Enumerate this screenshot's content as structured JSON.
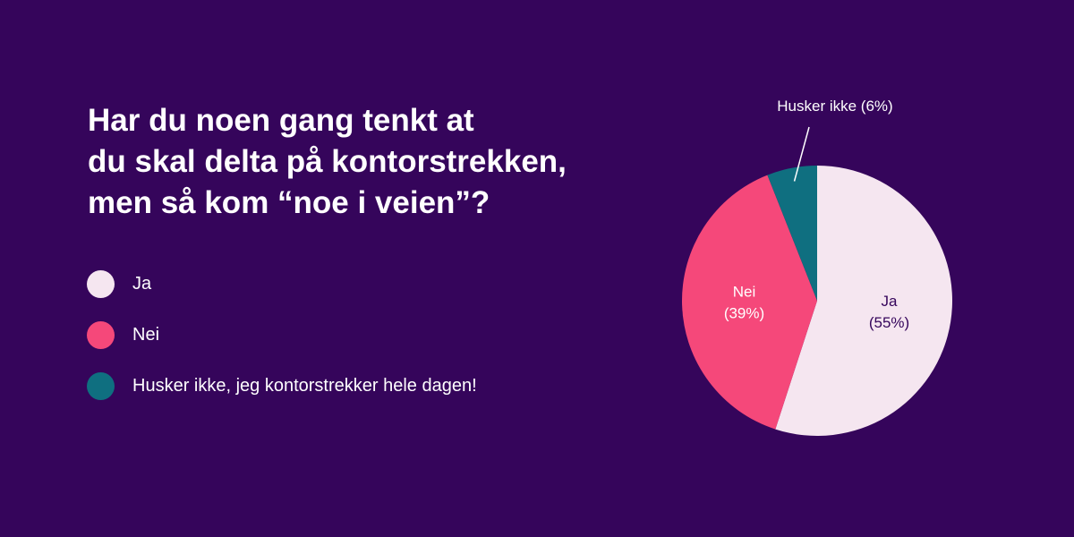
{
  "title_lines": [
    "Har du noen gang tenkt at",
    "du skal delta på kontorstrekken,",
    "men så kom “noe i veien”?"
  ],
  "legend": [
    {
      "label": "Ja",
      "color": "#f5e6f0"
    },
    {
      "label": "Nei",
      "color": "#f5487a"
    },
    {
      "label": "Husker ikke, jeg kontorstrekker hele dagen!",
      "color": "#0f6f80"
    }
  ],
  "chart_data": {
    "type": "pie",
    "slices": [
      {
        "label_lines": [
          "Ja",
          "(55%)"
        ],
        "value": 55,
        "color": "#f5e6f0",
        "text_color": "#35055b"
      },
      {
        "label_lines": [
          "Nei",
          "(39%)"
        ],
        "value": 39,
        "color": "#f5487a",
        "text_color": "#ffffff"
      },
      {
        "label_lines": [
          "Husker ikke (6%)"
        ],
        "value": 6,
        "color": "#0f6f80",
        "text_color": "#ffffff",
        "callout": true
      }
    ]
  }
}
